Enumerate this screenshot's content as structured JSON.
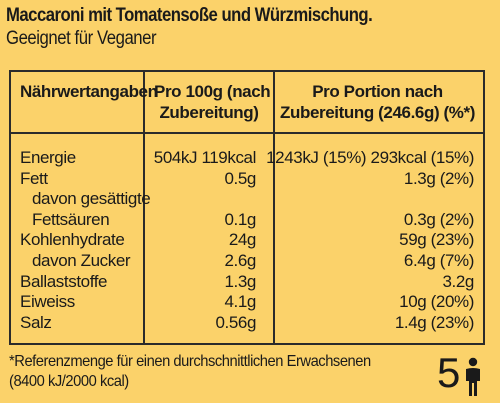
{
  "header": {
    "title": "Maccaroni mit Tomatensoße und Würzmischung.",
    "subtitle": "Geeignet für Veganer"
  },
  "table": {
    "headers": {
      "col1": "Nährwertangaben",
      "col2_line1": "Pro 100g (nach",
      "col2_line2": "Zubereitung)",
      "col3_line1": "Pro Portion nach",
      "col3_line2": "Zubereitung (246.6g) (%*)"
    },
    "rows": [
      {
        "label": "Energie",
        "per100": "504kJ 119kcal",
        "portion": "1243kJ (15%) 293kcal (15%)"
      },
      {
        "label": "Fett",
        "per100": "0.5g",
        "portion": "1.3g (2%)"
      },
      {
        "label": "  davon gesättigte",
        "per100": "",
        "portion": ""
      },
      {
        "label": "  Fettsäuren",
        "per100": "0.1g",
        "portion": "0.3g (2%)"
      },
      {
        "label": "Kohlenhydrate",
        "per100": "24g",
        "portion": "59g (23%)"
      },
      {
        "label": "  davon Zucker",
        "per100": "2.6g",
        "portion": "6.4g (7%)"
      },
      {
        "label": "Ballaststoffe",
        "per100": "1.3g",
        "portion": "3.2g"
      },
      {
        "label": "Eiweiss",
        "per100": "4.1g",
        "portion": "10g (20%)"
      },
      {
        "label": "Salz",
        "per100": "0.56g",
        "portion": "1.4g (23%)"
      }
    ]
  },
  "footnote": {
    "line1": "*Referenzmenge für einen durchschnittlichen Erwachsenen",
    "line2": "(8400 kJ/2000 kcal)"
  },
  "portion_badge": {
    "count": "5",
    "icon": "person-icon"
  }
}
